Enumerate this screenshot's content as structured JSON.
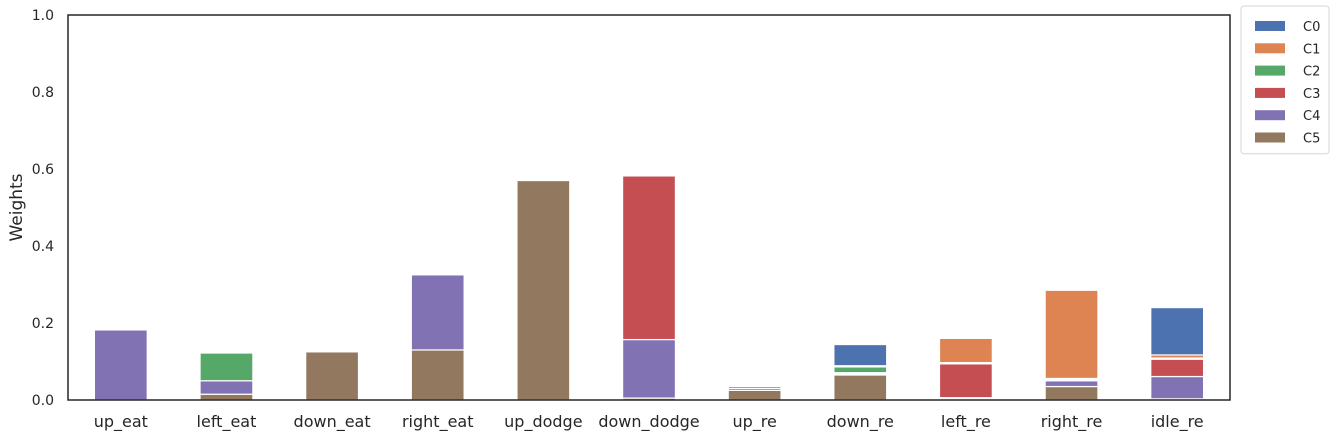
{
  "chart_data": {
    "type": "bar",
    "stacked": true,
    "title": "",
    "xlabel": "",
    "ylabel": "Weights",
    "ylim": [
      0,
      1
    ],
    "yticks": [
      "0.0",
      "0.2",
      "0.4",
      "0.6",
      "0.8",
      "1.0"
    ],
    "grid": false,
    "legend_position": "outside-top-right",
    "categories": [
      "up_eat",
      "left_eat",
      "down_eat",
      "right_eat",
      "up_dodge",
      "down_dodge",
      "up_re",
      "down_re",
      "left_re",
      "right_re",
      "idle_re"
    ],
    "series": [
      {
        "name": "C5",
        "color": "#937860",
        "values": [
          0.0,
          0.015,
          0.125,
          0.13,
          0.57,
          0.005,
          0.025,
          0.065,
          0.003,
          0.035,
          0.003
        ]
      },
      {
        "name": "C4",
        "color": "#8172b3",
        "values": [
          0.182,
          0.035,
          0.0,
          0.195,
          0.0,
          0.152,
          0.005,
          0.003,
          0.003,
          0.015,
          0.058
        ]
      },
      {
        "name": "C3",
        "color": "#c44e52",
        "values": [
          0.0,
          0.0,
          0.0,
          0.0,
          0.0,
          0.425,
          0.005,
          0.003,
          0.088,
          0.003,
          0.045
        ]
      },
      {
        "name": "C2",
        "color": "#55a868",
        "values": [
          0.0,
          0.072,
          0.0,
          0.0,
          0.0,
          0.0,
          0.003,
          0.015,
          0.003,
          0.003,
          0.003
        ]
      },
      {
        "name": "C1",
        "color": "#dd8452",
        "values": [
          0.0,
          0.0,
          0.0,
          0.0,
          0.0,
          0.0,
          0.003,
          0.003,
          0.063,
          0.229,
          0.008
        ]
      },
      {
        "name": "C0",
        "color": "#4c72b0",
        "values": [
          0.0,
          0.0,
          0.0,
          0.0,
          0.0,
          0.0,
          0.003,
          0.055,
          0.0,
          0.0,
          0.123
        ]
      }
    ],
    "legend_order": [
      "C0",
      "C1",
      "C2",
      "C3",
      "C4",
      "C5"
    ]
  }
}
